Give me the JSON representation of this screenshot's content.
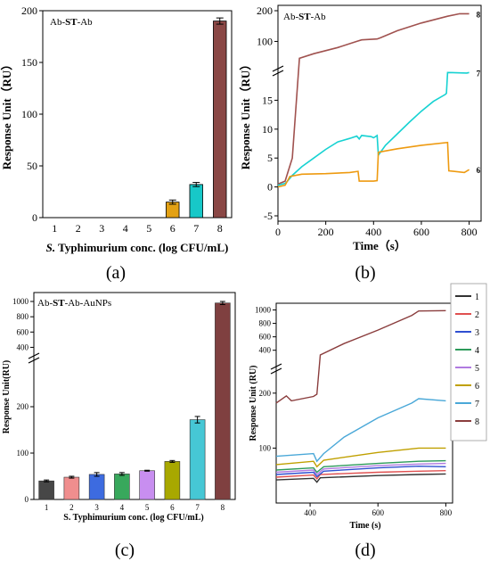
{
  "chart_data": [
    {
      "panel": "a",
      "type": "bar",
      "inset_label_parts": [
        "Ab-",
        "ST",
        "-Ab"
      ],
      "xlabel_parts": [
        "S.",
        " Typhimurium  conc. (log CFU/mL)"
      ],
      "ylabel": "Response Unit（RU）",
      "categories": [
        "1",
        "2",
        "3",
        "4",
        "5",
        "6",
        "7",
        "8"
      ],
      "values": [
        0,
        0,
        0,
        0,
        0,
        15,
        32,
        190
      ],
      "errors": [
        0,
        0,
        0,
        0,
        0,
        2,
        2,
        3
      ],
      "colors": [
        "#000000",
        "#000000",
        "#000000",
        "#000000",
        "#000000",
        "#e3a114",
        "#17c8c8",
        "#8a4745"
      ],
      "ylim": [
        0,
        200
      ],
      "yticks": [
        "0",
        "50",
        "100",
        "150",
        "200"
      ]
    },
    {
      "panel": "b",
      "type": "line",
      "inset_label_parts": [
        "Ab-",
        "ST",
        "-Ab"
      ],
      "xlabel": "Time（s）",
      "ylabel": "Response Unit（RU）",
      "xlim": [
        0,
        850
      ],
      "xticks": [
        "0",
        "200",
        "400",
        "600",
        "800"
      ],
      "yticks_lower": [
        "-5",
        "0",
        "5",
        "10",
        "15"
      ],
      "yticks_upper": [
        "100",
        "200"
      ],
      "series": [
        {
          "name": "8",
          "color": "#a0524f",
          "points": [
            [
              0,
              0.5
            ],
            [
              30,
              1
            ],
            [
              60,
              5
            ],
            [
              90,
              45
            ],
            [
              150,
              60
            ],
            [
              250,
              80
            ],
            [
              330,
              100
            ],
            [
              350,
              105
            ],
            [
              415,
              108
            ],
            [
              430,
              112
            ],
            [
              500,
              135
            ],
            [
              600,
              160
            ],
            [
              710,
              182
            ],
            [
              760,
              190
            ],
            [
              800,
              190
            ]
          ]
        },
        {
          "name": "7",
          "color": "#17d2d2",
          "points": [
            [
              0,
              0.3
            ],
            [
              30,
              0.6
            ],
            [
              40,
              1
            ],
            [
              60,
              2
            ],
            [
              100,
              3.5
            ],
            [
              150,
              5
            ],
            [
              200,
              6.5
            ],
            [
              250,
              7.8
            ],
            [
              300,
              8.4
            ],
            [
              330,
              8.8
            ],
            [
              340,
              8.3
            ],
            [
              350,
              8.9
            ],
            [
              390,
              8.7
            ],
            [
              400,
              8.5
            ],
            [
              415,
              8.9
            ],
            [
              420,
              5.5
            ],
            [
              450,
              7.2
            ],
            [
              500,
              9.2
            ],
            [
              550,
              11.2
            ],
            [
              600,
              13.1
            ],
            [
              650,
              14.8
            ],
            [
              700,
              16
            ],
            [
              705,
              16.2
            ],
            [
              710,
              19.8
            ],
            [
              790,
              19.7
            ],
            [
              800,
              19.8
            ]
          ]
        },
        {
          "name": "6",
          "color": "#ee9a10",
          "points": [
            [
              0,
              0
            ],
            [
              30,
              0.3
            ],
            [
              50,
              1.8
            ],
            [
              100,
              2.2
            ],
            [
              200,
              2.3
            ],
            [
              300,
              2.5
            ],
            [
              335,
              2.7
            ],
            [
              340,
              1
            ],
            [
              400,
              1
            ],
            [
              415,
              1.1
            ],
            [
              420,
              6
            ],
            [
              500,
              6.6
            ],
            [
              600,
              7.2
            ],
            [
              710,
              7.7
            ],
            [
              715,
              2.8
            ],
            [
              780,
              2.5
            ],
            [
              800,
              3
            ]
          ]
        }
      ]
    },
    {
      "panel": "c",
      "type": "bar",
      "inset_label_parts": [
        "Ab-",
        "ST",
        "-Ab-AuNPs"
      ],
      "xlabel": "S. Typhimurium  conc. (log CFU/mL)",
      "ylabel": "Response Unit(RU)",
      "categories": [
        "1",
        "2",
        "3",
        "4",
        "5",
        "6",
        "7",
        "8"
      ],
      "values": [
        40,
        48,
        54,
        55,
        62,
        82,
        172,
        980
      ],
      "errors": [
        2,
        2,
        4,
        3,
        1,
        2,
        7,
        20
      ],
      "colors": [
        "#474747",
        "#f08e8e",
        "#3d6be0",
        "#38a85c",
        "#c88ef0",
        "#a8a800",
        "#46c7d5",
        "#7f4040"
      ],
      "yticks_lower": [
        "0",
        "100",
        "200"
      ],
      "yticks_upper": [
        "400",
        "600",
        "800",
        "1000"
      ]
    },
    {
      "panel": "d",
      "type": "line",
      "xlabel": "Time (s)",
      "ylabel": "Response Unit (RU)",
      "xlim": [
        300,
        820
      ],
      "xticks": [
        "400",
        "600",
        "800"
      ],
      "yticks_lower": [
        "100",
        "200"
      ],
      "yticks_upper": [
        "400",
        "600",
        "800",
        "1000"
      ],
      "legend_position": "top-right",
      "series": [
        {
          "name": "1",
          "color": "#333333",
          "points": [
            [
              300,
              42
            ],
            [
              410,
              45
            ],
            [
              420,
              38
            ],
            [
              430,
              46
            ],
            [
              600,
              50
            ],
            [
              720,
              52
            ],
            [
              800,
              53
            ]
          ]
        },
        {
          "name": "2",
          "color": "#e05050",
          "points": [
            [
              300,
              47
            ],
            [
              410,
              51
            ],
            [
              420,
              44
            ],
            [
              430,
              52
            ],
            [
              600,
              56
            ],
            [
              720,
              58
            ],
            [
              800,
              59
            ]
          ]
        },
        {
          "name": "3",
          "color": "#2f4fd1",
          "points": [
            [
              300,
              52
            ],
            [
              410,
              56
            ],
            [
              420,
              48
            ],
            [
              440,
              58
            ],
            [
              600,
              64
            ],
            [
              720,
              67
            ],
            [
              800,
              66
            ]
          ]
        },
        {
          "name": "4",
          "color": "#2c9a5a",
          "points": [
            [
              300,
              60
            ],
            [
              410,
              64
            ],
            [
              420,
              56
            ],
            [
              440,
              66
            ],
            [
              600,
              72
            ],
            [
              720,
              76
            ],
            [
              800,
              77
            ]
          ]
        },
        {
          "name": "5",
          "color": "#b07ae0",
          "points": [
            [
              300,
              56
            ],
            [
              410,
              60
            ],
            [
              420,
              52
            ],
            [
              440,
              62
            ],
            [
              600,
              68
            ],
            [
              720,
              71
            ],
            [
              800,
              72
            ]
          ]
        },
        {
          "name": "6",
          "color": "#c0a000",
          "points": [
            [
              300,
              70
            ],
            [
              410,
              76
            ],
            [
              420,
              66
            ],
            [
              440,
              78
            ],
            [
              600,
              92
            ],
            [
              720,
              100
            ],
            [
              800,
              100
            ]
          ]
        },
        {
          "name": "7",
          "color": "#4aa8d8",
          "points": [
            [
              300,
              85
            ],
            [
              410,
              90
            ],
            [
              420,
              76
            ],
            [
              440,
              90
            ],
            [
              500,
              120
            ],
            [
              600,
              155
            ],
            [
              700,
              182
            ],
            [
              720,
              190
            ],
            [
              800,
              186
            ]
          ]
        },
        {
          "name": "8",
          "color": "#8a3d3d",
          "points": [
            [
              300,
              182
            ],
            [
              330,
              195
            ],
            [
              345,
              186
            ],
            [
              410,
              194
            ],
            [
              420,
              198
            ],
            [
              430,
              330
            ],
            [
              500,
              500
            ],
            [
              600,
              700
            ],
            [
              700,
              920
            ],
            [
              720,
              985
            ],
            [
              800,
              990
            ]
          ]
        }
      ]
    }
  ],
  "panel_labels": [
    "(a)",
    "(b)",
    "(c)",
    "(d)"
  ]
}
